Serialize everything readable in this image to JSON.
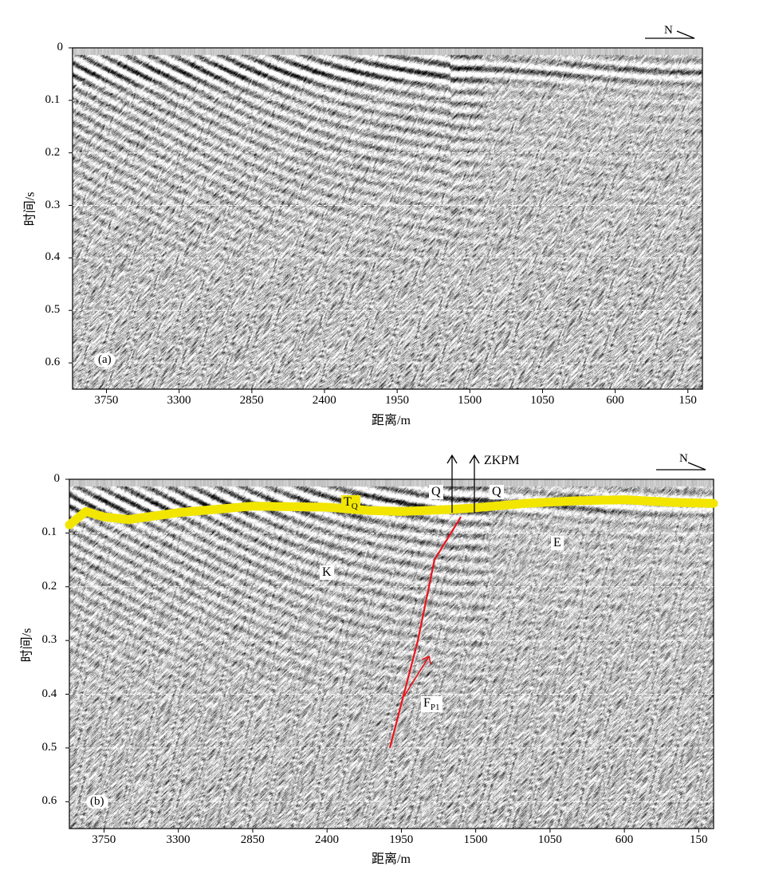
{
  "chart_data": [
    {
      "type": "seismic-section",
      "panel_label": "(a)",
      "xlabel": "距离/m",
      "ylabel": "时间/s",
      "xticks": [
        "3750",
        "3300",
        "2850",
        "2400",
        "1950",
        "1500",
        "1050",
        "600",
        "150"
      ],
      "yticks": [
        "0",
        "0.1",
        "0.2",
        "0.3",
        "0.4",
        "0.5",
        "0.6"
      ],
      "xlim": [
        3960,
        60
      ],
      "ylim": [
        0,
        0.65
      ],
      "grid": "dashed-horizontal",
      "north_arrow": "N"
    },
    {
      "type": "seismic-section",
      "panel_label": "(b)",
      "xlabel": "距离/m",
      "ylabel": "时间/s",
      "xticks": [
        "3750",
        "3300",
        "2850",
        "2400",
        "1950",
        "1500",
        "1050",
        "600",
        "150"
      ],
      "yticks": [
        "0",
        "0.1",
        "0.2",
        "0.3",
        "0.4",
        "0.5",
        "0.6"
      ],
      "xlim": [
        3960,
        60
      ],
      "ylim": [
        0,
        0.65
      ],
      "grid": "dashed-horizontal",
      "north_arrow": "N",
      "borehole_label": "ZKPM",
      "horizon": {
        "name": "TQ",
        "name_main": "T",
        "name_sub": "Q",
        "color": "#f2e600",
        "points": [
          [
            3960,
            0.085
          ],
          [
            3860,
            0.06
          ],
          [
            3750,
            0.07
          ],
          [
            3600,
            0.075
          ],
          [
            3300,
            0.062
          ],
          [
            2850,
            0.05
          ],
          [
            2400,
            0.052
          ],
          [
            2150,
            0.058
          ],
          [
            1950,
            0.06
          ],
          [
            1650,
            0.056
          ],
          [
            1500,
            0.053
          ],
          [
            1200,
            0.045
          ],
          [
            900,
            0.04
          ],
          [
            600,
            0.038
          ],
          [
            300,
            0.043
          ],
          [
            60,
            0.045
          ]
        ]
      },
      "fault": {
        "name": "FP1",
        "name_main": "F",
        "name_sub": "P1",
        "color": "#e8141c",
        "points": [
          [
            2020,
            0.5
          ],
          [
            1850,
            0.3
          ],
          [
            1750,
            0.15
          ],
          [
            1590,
            0.07
          ]
        ]
      },
      "unit_labels": [
        "Q",
        "Q",
        "E",
        "K"
      ]
    }
  ]
}
